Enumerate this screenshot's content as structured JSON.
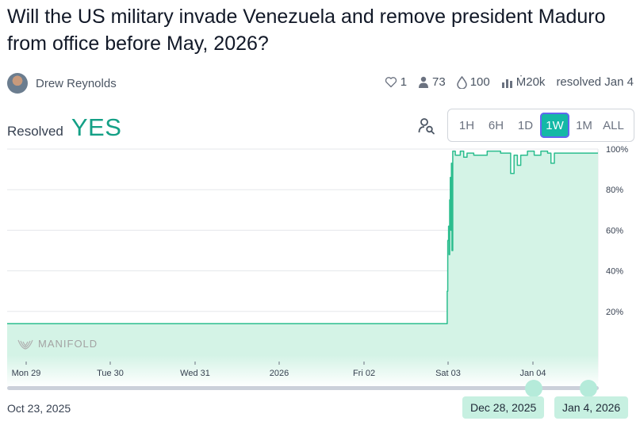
{
  "market": {
    "title": "Will the US military invade Venezuela and remove president Maduro from office before May, 2026?",
    "author": "Drew Reynolds",
    "stats": {
      "likes": "1",
      "traders": "73",
      "liquidity": "100",
      "volume": "Ṁ20k",
      "resolved": "resolved Jan 4"
    },
    "resolution_label": "Resolved",
    "resolution_value": "YES"
  },
  "time_range": {
    "options": [
      "1H",
      "6H",
      "1D",
      "1W",
      "1M",
      "ALL"
    ],
    "selected": "1W"
  },
  "colors": {
    "accent": "#14a086",
    "line": "#2bbd8e",
    "fill": "#d4f3e6",
    "selected_range": "#14b8a6"
  },
  "watermark": "MANIFOLD",
  "chart_data": {
    "type": "area",
    "x_ticks": [
      "Mon 29",
      "Tue 30",
      "Wed 31",
      "2026",
      "Fri 02",
      "Sat 03",
      "Jan 04"
    ],
    "y_ticks": [
      "20%",
      "40%",
      "60%",
      "80%",
      "100%"
    ],
    "ylim": [
      0,
      100
    ],
    "xlim": [
      "2025-12-28T19:00",
      "2026-01-05T03:00"
    ],
    "grid": true,
    "series": [
      {
        "points": [
          [
            "2025-12-28T19:00",
            14
          ],
          [
            "2026-01-03T06:00",
            14
          ],
          [
            "2026-01-03T06:05",
            30
          ],
          [
            "2026-01-03T06:15",
            55
          ],
          [
            "2026-01-03T06:30",
            62
          ],
          [
            "2026-01-03T06:40",
            48
          ],
          [
            "2026-01-03T06:50",
            75
          ],
          [
            "2026-01-03T07:00",
            86
          ],
          [
            "2026-01-03T07:10",
            60
          ],
          [
            "2026-01-03T07:20",
            93
          ],
          [
            "2026-01-03T07:30",
            50
          ],
          [
            "2026-01-03T07:45",
            99
          ],
          [
            "2026-01-03T08:30",
            97
          ],
          [
            "2026-01-03T10:00",
            99
          ],
          [
            "2026-01-03T11:00",
            96
          ],
          [
            "2026-01-03T12:00",
            98
          ],
          [
            "2026-01-03T14:00",
            97
          ],
          [
            "2026-01-03T18:00",
            99
          ],
          [
            "2026-01-03T22:00",
            98
          ],
          [
            "2026-01-04T01:00",
            88
          ],
          [
            "2026-01-04T02:00",
            97
          ],
          [
            "2026-01-04T03:00",
            92
          ],
          [
            "2026-01-04T04:00",
            97
          ],
          [
            "2026-01-04T06:00",
            99
          ],
          [
            "2026-01-04T08:00",
            97
          ],
          [
            "2026-01-04T10:00",
            99
          ],
          [
            "2026-01-04T12:00",
            98
          ],
          [
            "2026-01-04T13:00",
            93
          ],
          [
            "2026-01-04T14:00",
            98
          ],
          [
            "2026-01-05T03:00",
            98
          ]
        ]
      }
    ]
  },
  "date_range": {
    "start": "Oct 23, 2025",
    "from": "Dec 28, 2025",
    "to": "Jan 4, 2026"
  }
}
